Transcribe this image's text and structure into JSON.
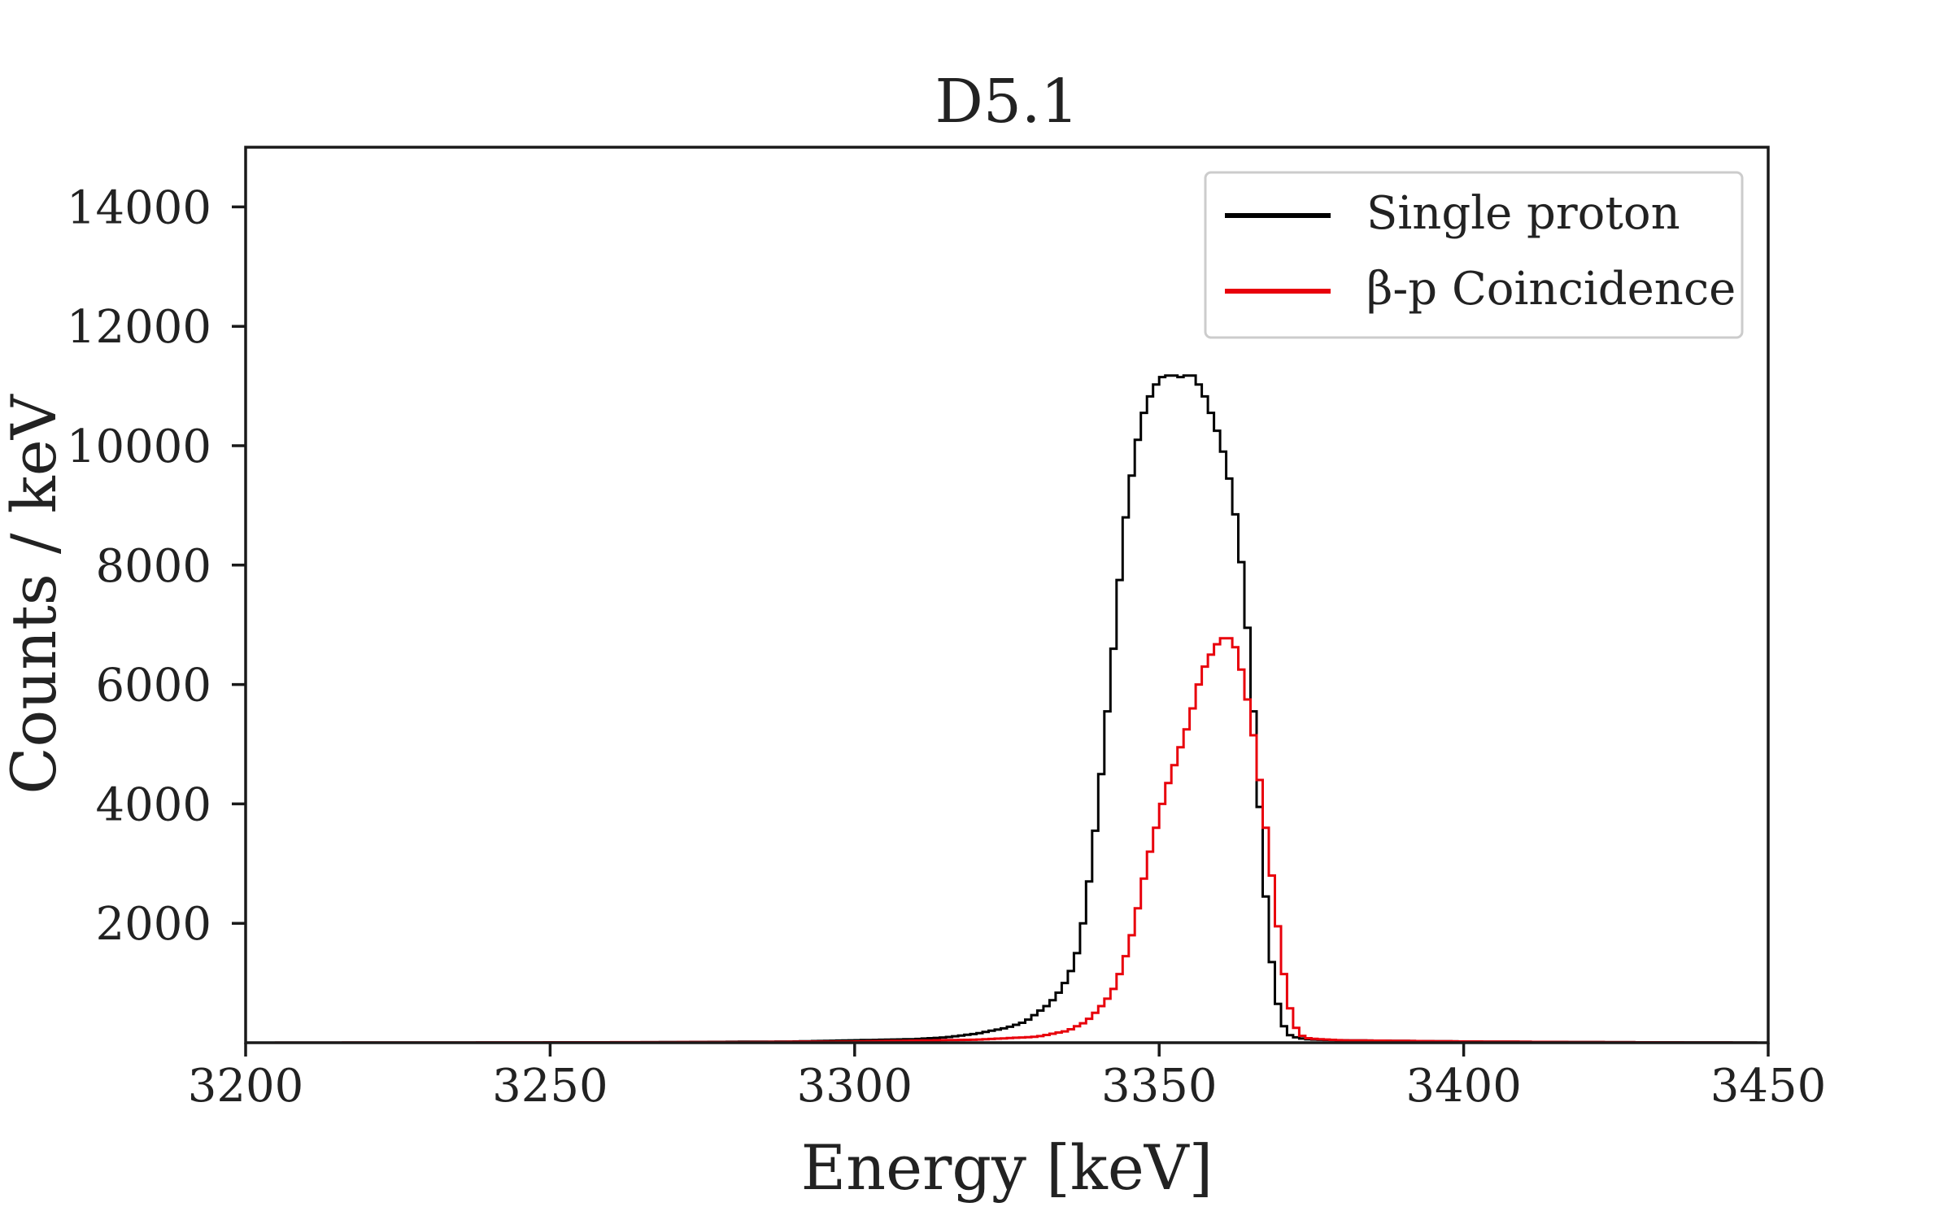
{
  "chart_data": {
    "type": "line",
    "title": "D5.1",
    "xlabel": "Energy [keV]",
    "ylabel": "Counts / keV",
    "xlim": [
      3200,
      3450
    ],
    "ylim": [
      0,
      15000
    ],
    "xticks": [
      3200,
      3250,
      3300,
      3350,
      3400,
      3450
    ],
    "yticks": [
      2000,
      4000,
      6000,
      8000,
      10000,
      12000,
      14000
    ],
    "grid": false,
    "legend_position": "top-right",
    "bin_width_keV": 1,
    "series": [
      {
        "name": "Single proton",
        "color": "#000000",
        "step": true,
        "x": [
          3200,
          3250,
          3270,
          3290,
          3300,
          3310,
          3315,
          3320,
          3325,
          3328,
          3330,
          3332,
          3334,
          3336,
          3337,
          3338,
          3339,
          3340,
          3341,
          3342,
          3343,
          3344,
          3345,
          3346,
          3347,
          3348,
          3349,
          3350,
          3351,
          3352,
          3353,
          3354,
          3355,
          3356,
          3357,
          3358,
          3359,
          3360,
          3361,
          3362,
          3363,
          3364,
          3365,
          3366,
          3367,
          3368,
          3369,
          3370,
          3371,
          3372,
          3373,
          3374,
          3376,
          3380,
          3390,
          3400,
          3420,
          3450
        ],
        "y": [
          0,
          0,
          10,
          20,
          40,
          60,
          90,
          150,
          250,
          350,
          500,
          650,
          900,
          1300,
          1700,
          2300,
          3100,
          4000,
          5000,
          6100,
          7100,
          8400,
          9200,
          9800,
          10400,
          10700,
          10950,
          11100,
          11200,
          11150,
          11200,
          11100,
          11250,
          11100,
          10950,
          10700,
          10400,
          10100,
          9700,
          9200,
          8500,
          7600,
          6300,
          4800,
          3100,
          1800,
          900,
          400,
          150,
          100,
          80,
          60,
          50,
          40,
          30,
          20,
          10,
          0
        ]
      },
      {
        "name": "β-p Coincidence",
        "color": "#e8000b",
        "step": true,
        "x": [
          3200,
          3280,
          3300,
          3320,
          3330,
          3335,
          3338,
          3340,
          3342,
          3343,
          3344,
          3345,
          3346,
          3347,
          3348,
          3349,
          3350,
          3351,
          3352,
          3353,
          3354,
          3355,
          3356,
          3357,
          3358,
          3359,
          3360,
          3361,
          3362,
          3363,
          3364,
          3365,
          3366,
          3367,
          3368,
          3369,
          3370,
          3371,
          3372,
          3373,
          3374,
          3376,
          3380,
          3390,
          3400,
          3420,
          3450
        ],
        "y": [
          0,
          10,
          20,
          50,
          100,
          200,
          350,
          550,
          800,
          1000,
          1300,
          1600,
          2000,
          2500,
          3000,
          3400,
          3800,
          4200,
          4500,
          4800,
          5100,
          5400,
          5800,
          6200,
          6400,
          6600,
          6750,
          6800,
          6750,
          6500,
          6000,
          5500,
          4800,
          4000,
          3200,
          2400,
          1500,
          800,
          350,
          150,
          80,
          60,
          40,
          30,
          20,
          10,
          0
        ]
      }
    ]
  }
}
